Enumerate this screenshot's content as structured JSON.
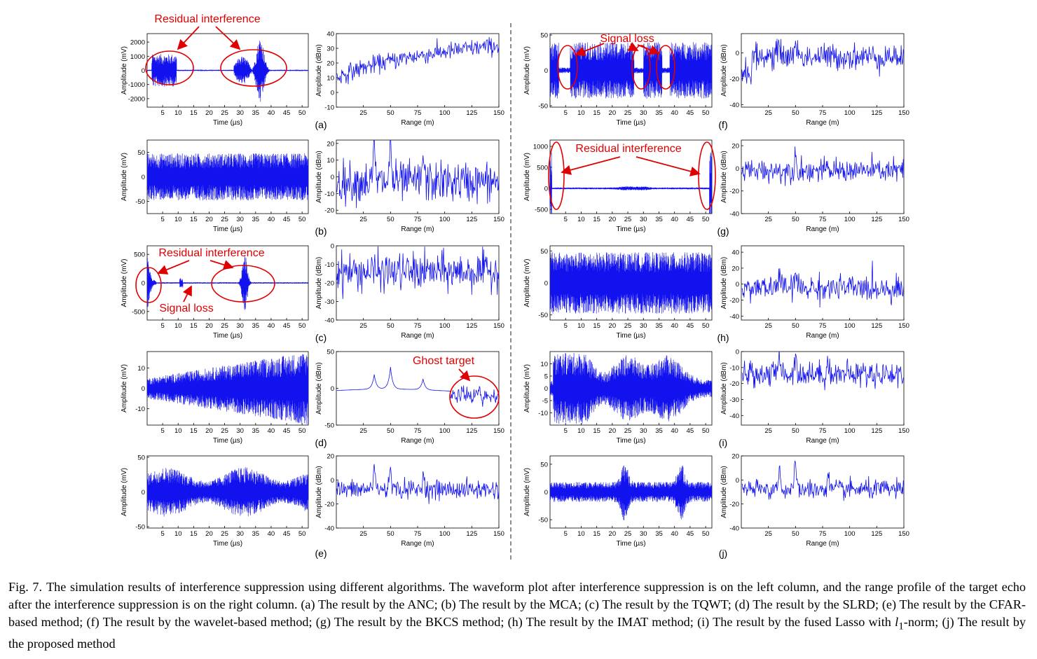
{
  "figure": {
    "colors": {
      "signal": "#1212ee",
      "annotation": "#e00000",
      "axis": "#000000",
      "divider": "#444444"
    },
    "x_time_label": "Time (µs)",
    "x_range_label": "Range (m)",
    "y_amp_label": "Amplitude (mV)",
    "y_pow_label": "Amplitude (dBm)",
    "panels": [
      {
        "id": "a",
        "label": "(a)",
        "wave": {
          "yticks": [
            "2000",
            "1000",
            "0",
            "-1000",
            "-2000"
          ],
          "ylim": [
            -2600,
            2600
          ]
        },
        "range": {
          "yticks": [
            "40",
            "30",
            "20",
            "10",
            "0",
            "-10"
          ],
          "ylim": [
            -10,
            40
          ]
        },
        "annotations": [
          {
            "text": "Residual interference"
          }
        ]
      },
      {
        "id": "b",
        "label": "(b)",
        "wave": {
          "yticks": [
            "50",
            "0",
            "-50"
          ],
          "ylim": [
            -75,
            75
          ]
        },
        "range": {
          "yticks": [
            "20",
            "10",
            "0",
            "-10",
            "-20"
          ],
          "ylim": [
            -22,
            22
          ]
        },
        "annotations": []
      },
      {
        "id": "c",
        "label": "(c)",
        "wave": {
          "yticks": [
            "500",
            "0",
            "-500"
          ],
          "ylim": [
            -650,
            650
          ]
        },
        "range": {
          "yticks": [
            "0",
            "-10",
            "-20",
            "-30",
            "-40"
          ],
          "ylim": [
            -40,
            0
          ]
        },
        "annotations": [
          {
            "text": "Residual interference"
          },
          {
            "text": "Signal loss"
          }
        ]
      },
      {
        "id": "d",
        "label": "(d)",
        "wave": {
          "yticks": [
            "10",
            "0",
            "-10"
          ],
          "ylim": [
            -18,
            18
          ]
        },
        "range": {
          "yticks": [
            "50",
            "0",
            "-50"
          ],
          "ylim": [
            -50,
            50
          ]
        },
        "annotations": [
          {
            "text": "Ghost target"
          }
        ]
      },
      {
        "id": "e",
        "label": "(e)",
        "wave": {
          "yticks": [
            "50",
            "0",
            "-50"
          ],
          "ylim": [
            -52,
            52
          ]
        },
        "range": {
          "yticks": [
            "20",
            "0",
            "-20",
            "-40"
          ],
          "ylim": [
            -40,
            20
          ]
        },
        "annotations": []
      },
      {
        "id": "f",
        "label": "(f)",
        "wave": {
          "yticks": [
            "50",
            "0",
            "-50"
          ],
          "ylim": [
            -52,
            52
          ]
        },
        "range": {
          "yticks": [
            "0",
            "-20",
            "-40"
          ],
          "ylim": [
            -42,
            15
          ]
        },
        "annotations": [
          {
            "text": "Signal loss"
          }
        ]
      },
      {
        "id": "g",
        "label": "(g)",
        "wave": {
          "yticks": [
            "1000",
            "500",
            "0",
            "-500"
          ],
          "ylim": [
            -600,
            1150
          ]
        },
        "range": {
          "yticks": [
            "20",
            "0",
            "-20",
            "-40"
          ],
          "ylim": [
            -40,
            25
          ]
        },
        "annotations": [
          {
            "text": "Residual interference"
          }
        ]
      },
      {
        "id": "h",
        "label": "(h)",
        "wave": {
          "yticks": [
            "50",
            "0",
            "-50"
          ],
          "ylim": [
            -58,
            58
          ]
        },
        "range": {
          "yticks": [
            "40",
            "20",
            "0",
            "-20",
            "-40"
          ],
          "ylim": [
            -45,
            48
          ]
        },
        "annotations": []
      },
      {
        "id": "i",
        "label": "(i)",
        "wave": {
          "yticks": [
            "10",
            "5",
            "0",
            "-5",
            "-10"
          ],
          "ylim": [
            -15,
            15
          ]
        },
        "range": {
          "yticks": [
            "0",
            "-10",
            "-20",
            "-30",
            "-40"
          ],
          "ylim": [
            -46,
            0
          ]
        },
        "annotations": []
      },
      {
        "id": "j",
        "label": "(j)",
        "wave": {
          "yticks": [
            "50",
            "0",
            "-50"
          ],
          "ylim": [
            -65,
            65
          ]
        },
        "range": {
          "yticks": [
            "20",
            "0",
            "-20",
            "-40"
          ],
          "ylim": [
            -40,
            20
          ]
        },
        "annotations": []
      }
    ],
    "wave_xticks": [
      "5",
      "10",
      "15",
      "20",
      "25",
      "30",
      "35",
      "40",
      "45",
      "50"
    ],
    "range_xticks": [
      "25",
      "50",
      "75",
      "100",
      "125",
      "150"
    ],
    "chart_data": {
      "type": "line",
      "wave_x_range_us": [
        0,
        52
      ],
      "range_x_range_m": [
        0,
        150
      ]
    }
  },
  "caption": {
    "label": "Fig. 7.",
    "text": "The simulation results of interference suppression using different algorithms. The waveform plot after interference suppression is on the left column, and the range profile of the target echo after the interference suppression is on the right column. (a) The result by the ANC; (b) The result by the MCA; (c) The result by the TQWT; (d) The result by the SLRD; (e) The result by the CFAR-based method; (f) The result by the wavelet-based method; (g) The result by the BKCS method; (h) The result by the IMAT method; (i) The result by the fused Lasso with ",
    "math": "l",
    "sub": "1",
    "text_end": "-norm; (j) The result by the proposed method"
  }
}
